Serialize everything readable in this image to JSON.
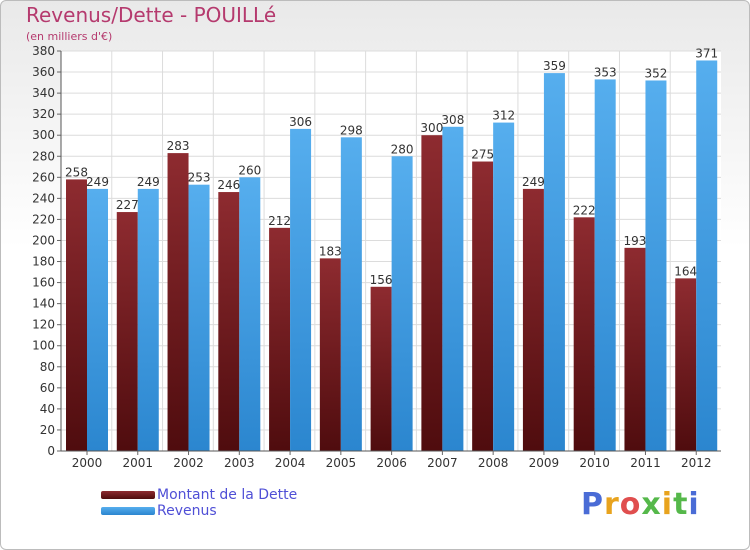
{
  "title": "Revenus/Dette - POUILLé",
  "subtitle": "(en milliers d'€)",
  "logo": {
    "text": "Proxiti",
    "letter_colors": [
      "#4a6cd6",
      "#e8a31e",
      "#e04e4e",
      "#55b84a",
      "#e8a31e",
      "#55b84a",
      "#4a6cd6"
    ]
  },
  "chart_data": {
    "type": "bar",
    "categories": [
      "2000",
      "2001",
      "2002",
      "2003",
      "2004",
      "2005",
      "2006",
      "2007",
      "2008",
      "2009",
      "2010",
      "2011",
      "2012"
    ],
    "series": [
      {
        "name": "Montant de la Dette",
        "color": "#7a1f22",
        "values": [
          258,
          227,
          283,
          246,
          212,
          183,
          156,
          300,
          275,
          249,
          222,
          193,
          164
        ]
      },
      {
        "name": "Revenus",
        "color": "#3d9be3",
        "values": [
          249,
          249,
          253,
          260,
          306,
          298,
          280,
          308,
          312,
          359,
          353,
          352,
          371
        ]
      }
    ],
    "ylim": [
      0,
      380
    ],
    "ytick_step": 20,
    "grid": true,
    "legend_position": "bottom-left"
  }
}
